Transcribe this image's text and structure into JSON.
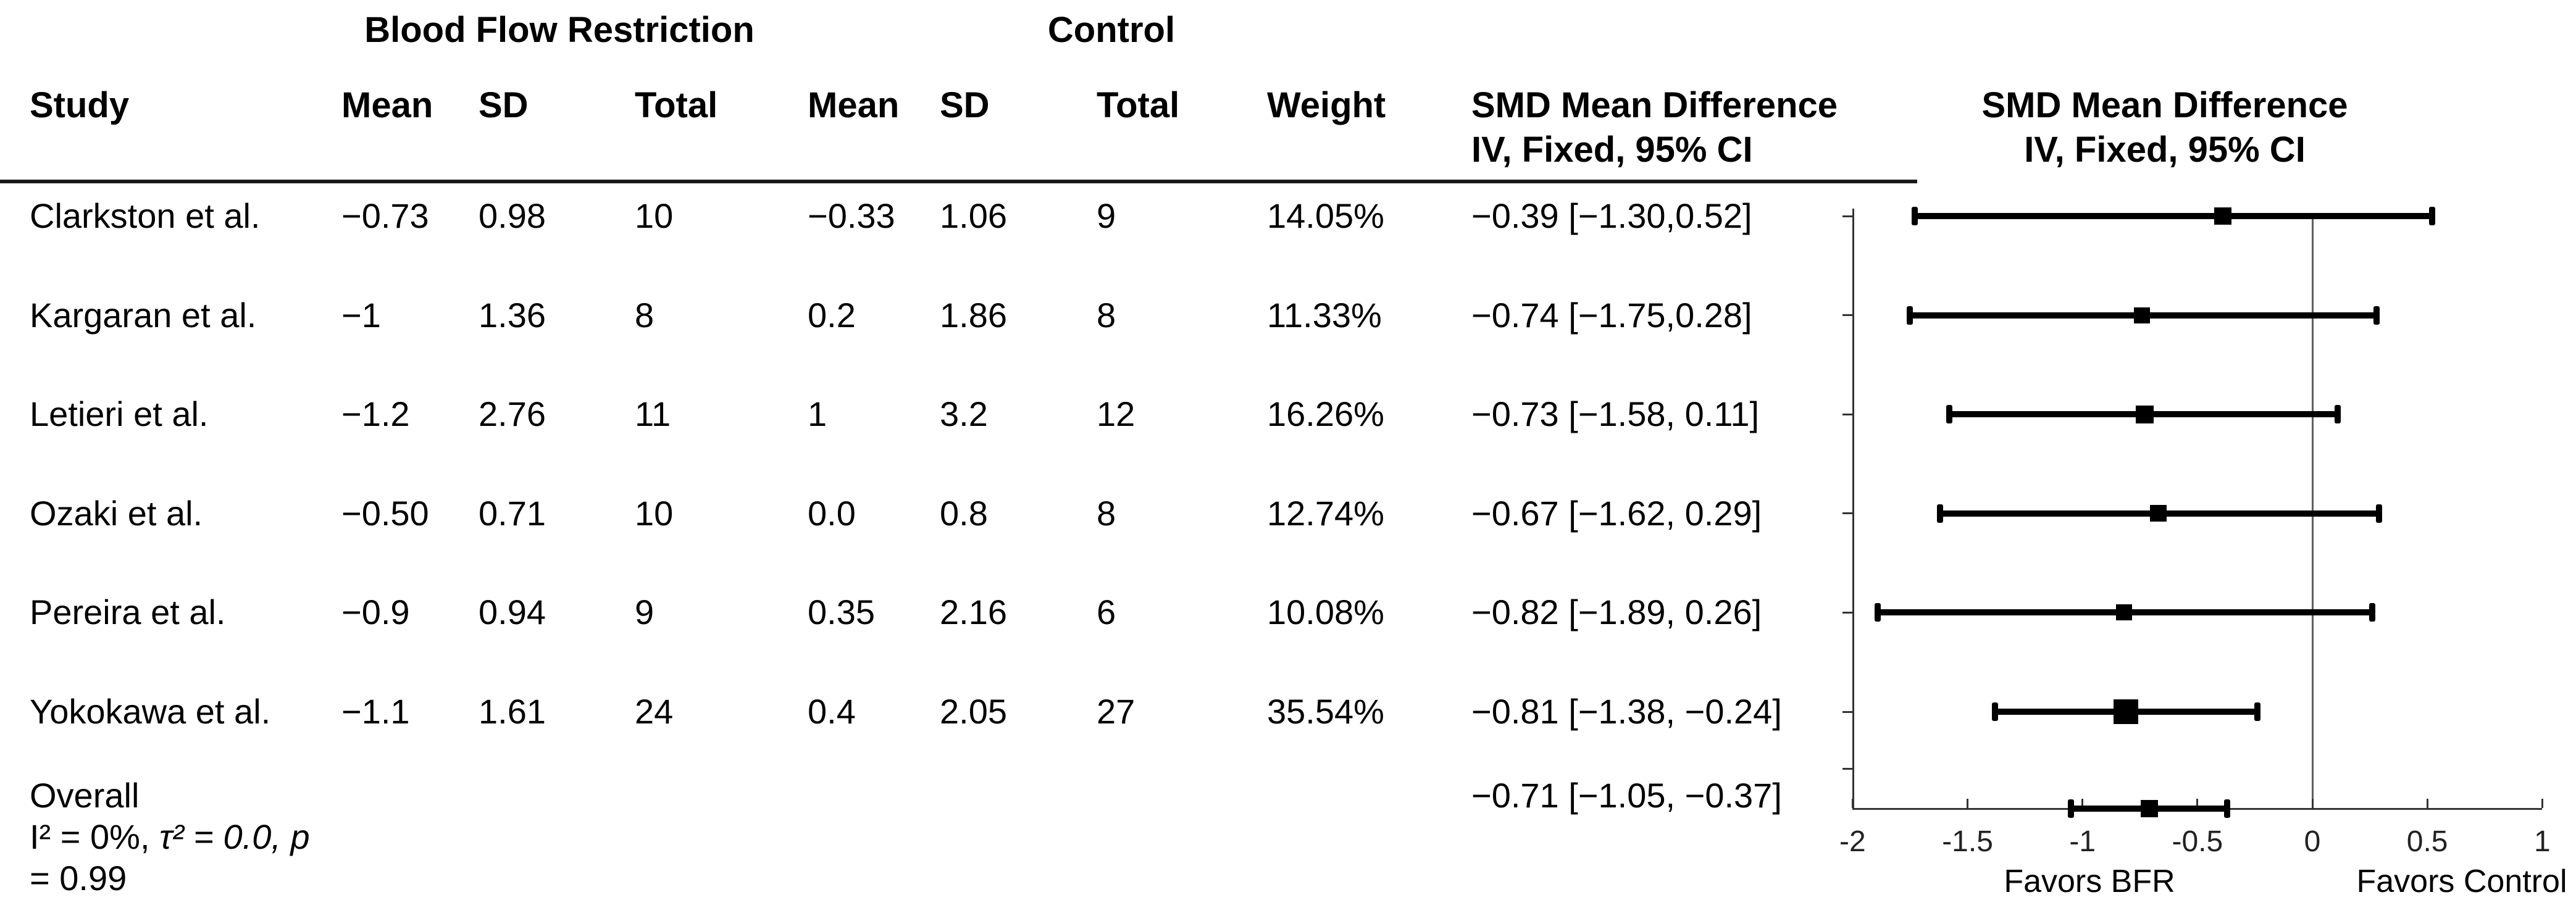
{
  "table": {
    "group_headers": {
      "bfr": "Blood Flow Restriction",
      "control": "Control"
    },
    "columns": {
      "study": "Study",
      "bfr_mean": "Mean",
      "bfr_sd": "SD",
      "bfr_total": "Total",
      "ctl_mean": "Mean",
      "ctl_sd": "SD",
      "ctl_total": "Total",
      "weight": "Weight",
      "smd_line1": "SMD Mean Difference",
      "smd_line2": "IV, Fixed, 95% CI"
    },
    "rows": [
      {
        "study": "Clarkston et al.",
        "bfr_mean": "−0.73",
        "bfr_sd": "0.98",
        "bfr_total": "10",
        "ctl_mean": "−0.33",
        "ctl_sd": "1.06",
        "ctl_total": "9",
        "weight": "14.05%",
        "smd": "−0.39 [−1.30,0.52]"
      },
      {
        "study": "Kargaran et al.",
        "bfr_mean": "−1",
        "bfr_sd": "1.36",
        "bfr_total": "8",
        "ctl_mean": "0.2",
        "ctl_sd": "1.86",
        "ctl_total": "8",
        "weight": "11.33%",
        "smd": "−0.74 [−1.75,0.28]"
      },
      {
        "study": "Letieri et al.",
        "bfr_mean": "−1.2",
        "bfr_sd": "2.76",
        "bfr_total": "11",
        "ctl_mean": "1",
        "ctl_sd": "3.2",
        "ctl_total": "12",
        "weight": "16.26%",
        "smd": "−0.73 [−1.58, 0.11]"
      },
      {
        "study": "Ozaki et al.",
        "bfr_mean": "−0.50",
        "bfr_sd": "0.71",
        "bfr_total": "10",
        "ctl_mean": "0.0",
        "ctl_sd": "0.8",
        "ctl_total": "8",
        "weight": "12.74%",
        "smd": "−0.67 [−1.62, 0.29]"
      },
      {
        "study": "Pereira et al.",
        "bfr_mean": "−0.9",
        "bfr_sd": "0.94",
        "bfr_total": "9",
        "ctl_mean": "0.35",
        "ctl_sd": "2.16",
        "ctl_total": "6",
        "weight": "10.08%",
        "smd": "−0.82 [−1.89, 0.26]"
      },
      {
        "study": "Yokokawa et al.",
        "bfr_mean": "−1.1",
        "bfr_sd": "1.61",
        "bfr_total": "24",
        "ctl_mean": "0.4",
        "ctl_sd": "2.05",
        "ctl_total": "27",
        "weight": "35.54%",
        "smd": "−0.81 [−1.38, −0.24]"
      }
    ],
    "overall": {
      "label": "Overall",
      "het_normal": "I² = 0%, ",
      "het_italic": "τ² = 0.0, p",
      "het_line2": "= 0.99",
      "smd": "−0.71 [−1.05, −0.37]"
    }
  },
  "chart_data": {
    "type": "forest",
    "title_line1": "SMD Mean Difference",
    "title_line2": "IV, Fixed, 95% CI",
    "xlim": [
      -2,
      1
    ],
    "tick_values": [
      -2,
      -1.5,
      -1,
      -0.5,
      0,
      0.5,
      1
    ],
    "tick_labels": [
      "-2",
      "-1.5",
      "-1",
      "-0.5",
      "0",
      "0.5",
      "1"
    ],
    "zero_line_x": 0,
    "xlabel_left": "Favors BFR",
    "xlabel_right": "Favors Control",
    "grid": false,
    "colors": {
      "marker": "#000000",
      "frame": "#333333",
      "zero_line": "#606060"
    },
    "studies": [
      {
        "name": "Clarkston et al.",
        "mean": -0.39,
        "ci_low": -1.3,
        "ci_high": 0.52,
        "drawn_low": -1.73,
        "weight_pct": 14.05
      },
      {
        "name": "Kargaran et al.",
        "mean": -0.74,
        "ci_low": -1.75,
        "ci_high": 0.28,
        "weight_pct": 11.33
      },
      {
        "name": "Letieri et al.",
        "mean": -0.73,
        "ci_low": -1.58,
        "ci_high": 0.11,
        "weight_pct": 16.26
      },
      {
        "name": "Ozaki et al.",
        "mean": -0.67,
        "ci_low": -1.62,
        "ci_high": 0.29,
        "weight_pct": 12.74
      },
      {
        "name": "Pereira et al.",
        "mean": -0.82,
        "ci_low": -1.89,
        "ci_high": 0.26,
        "weight_pct": 10.08
      },
      {
        "name": "Yokokawa et al.",
        "mean": -0.81,
        "ci_low": -1.38,
        "ci_high": -0.24,
        "weight_pct": 35.54
      }
    ],
    "overall": {
      "name": "Overall",
      "mean": -0.71,
      "ci_low": -1.05,
      "ci_high": -0.37,
      "i_squared": "0%",
      "tau_squared": "0.0",
      "p_value": "0.99"
    }
  }
}
